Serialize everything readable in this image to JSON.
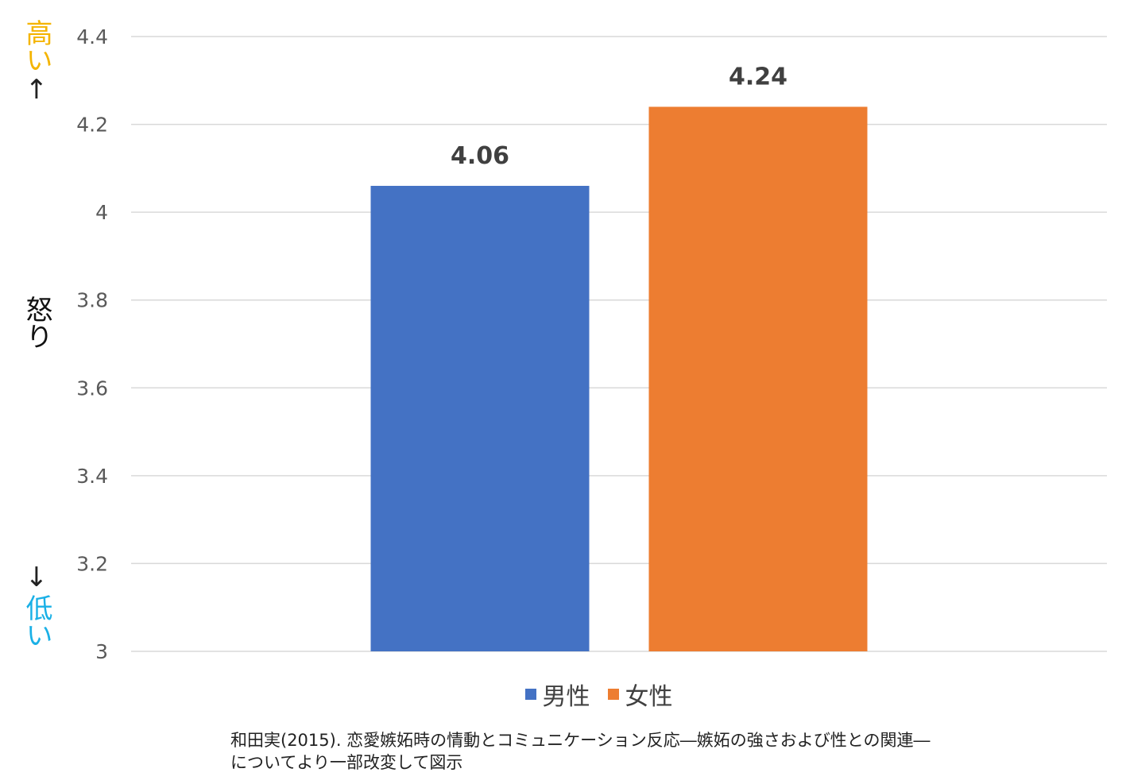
{
  "chart_data": {
    "type": "bar",
    "categories": [
      ""
    ],
    "series": [
      {
        "name": "男性",
        "values": [
          4.06
        ],
        "color": "#4472c4"
      },
      {
        "name": "女性",
        "values": [
          4.24
        ],
        "color": "#ed7d31"
      }
    ],
    "data_labels": [
      "4.06",
      "4.24"
    ],
    "ylabel": "怒り",
    "ylabel_high": "高い",
    "ylabel_low": "低い",
    "arrow_up": "↑",
    "arrow_down": "↓",
    "ylim": [
      3,
      4.4
    ],
    "yticks": [
      {
        "value": 3,
        "label": "3"
      },
      {
        "value": 3.2,
        "label": "3.2"
      },
      {
        "value": 3.4,
        "label": "3.4"
      },
      {
        "value": 3.6,
        "label": "3.6"
      },
      {
        "value": 3.8,
        "label": "3.8"
      },
      {
        "value": 4,
        "label": "4"
      },
      {
        "value": 4.2,
        "label": "4.2"
      },
      {
        "value": 4.4,
        "label": "4.4"
      }
    ],
    "grid": true,
    "legend_position": "bottom",
    "colors": {
      "grid": "#d9d9d9",
      "tick_text": "#595959",
      "data_label": "#404040",
      "high": "#f4b400",
      "low": "#1ab0e6"
    }
  },
  "caption": {
    "line1": "和田実(2015). 恋愛嫉妬時の情動とコミュニケーション反応―嫉妬の強さおよび性との関連―",
    "line2": "についてより一部改変して図示"
  }
}
